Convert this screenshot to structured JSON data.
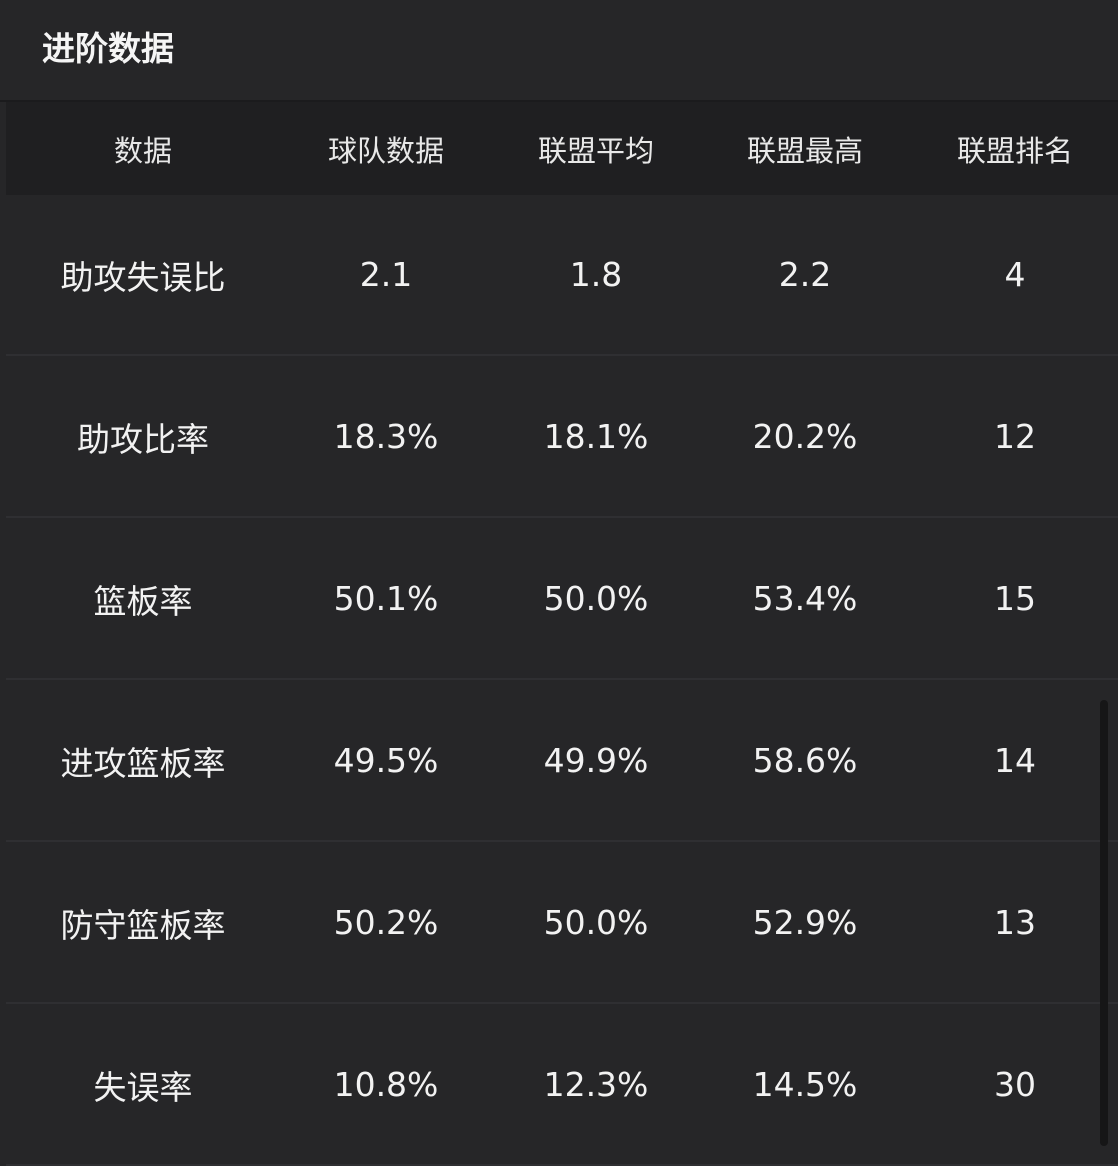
{
  "title": "进阶数据",
  "table": {
    "headers": [
      "数据",
      "球队数据",
      "联盟平均",
      "联盟最高",
      "联盟排名"
    ],
    "rows": [
      [
        "助攻失误比",
        "2.1",
        "1.8",
        "2.2",
        "4"
      ],
      [
        "助攻比率",
        "18.3%",
        "18.1%",
        "20.2%",
        "12"
      ],
      [
        "篮板率",
        "50.1%",
        "50.0%",
        "53.4%",
        "15"
      ],
      [
        "进攻篮板率",
        "49.5%",
        "49.9%",
        "58.6%",
        "14"
      ],
      [
        "防守篮板率",
        "50.2%",
        "50.0%",
        "52.9%",
        "13"
      ],
      [
        "失误率",
        "10.8%",
        "12.3%",
        "14.5%",
        "30"
      ]
    ]
  }
}
